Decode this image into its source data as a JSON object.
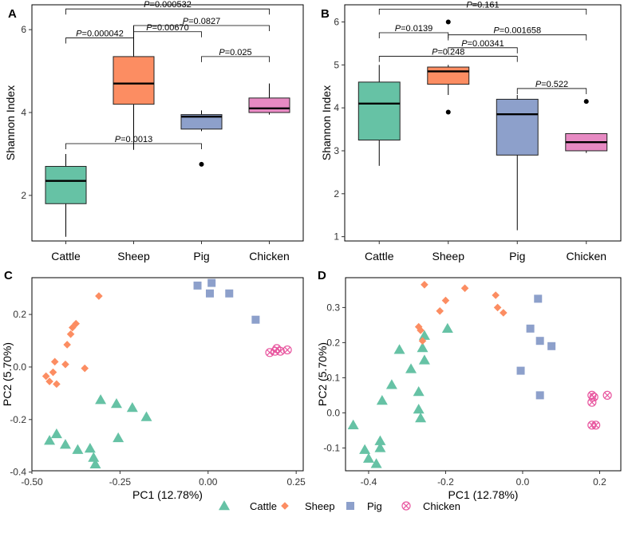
{
  "colors": {
    "Cattle": "#66c2a5",
    "Sheep": "#fc8d62",
    "Pig": "#8da0cb",
    "Chicken": "#e78ac3",
    "Chicken_marker": "#e8569f"
  },
  "legend": [
    "Cattle",
    "Sheep",
    "Pig",
    "Chicken"
  ],
  "chart_data": [
    {
      "panel": "A",
      "type": "box",
      "ylabel": "Shannon Index",
      "xlabel": "",
      "categories": [
        "Cattle",
        "Sheep",
        "Pig",
        "Chicken"
      ],
      "ylim": [
        0.9,
        6.6
      ],
      "yticks": [
        2,
        4,
        6
      ],
      "boxes": [
        {
          "group": "Cattle",
          "min": 1.0,
          "q1": 1.8,
          "median": 2.35,
          "q3": 2.7,
          "max": 3.0,
          "outliers": []
        },
        {
          "group": "Sheep",
          "min": 3.1,
          "q1": 4.2,
          "median": 4.7,
          "q3": 5.35,
          "max": 6.1,
          "outliers": []
        },
        {
          "group": "Pig",
          "min": 3.55,
          "q1": 3.6,
          "median": 3.9,
          "q3": 3.95,
          "max": 4.05,
          "outliers": [
            2.75
          ]
        },
        {
          "group": "Chicken",
          "min": 3.95,
          "q1": 4.0,
          "median": 4.1,
          "q3": 4.35,
          "max": 4.7,
          "outliers": []
        }
      ],
      "comparisons": [
        {
          "from": "Cattle",
          "to": "Chicken",
          "y": 6.5,
          "label_prefix": "P",
          "label": "=0.000532"
        },
        {
          "from": "Sheep",
          "to": "Chicken",
          "y": 6.1,
          "label_prefix": "P",
          "label": "=0.0827"
        },
        {
          "from": "Cattle",
          "to": "Sheep",
          "y": 5.8,
          "label_prefix": "P",
          "label": "=0.000042"
        },
        {
          "from": "Sheep",
          "to": "Pig",
          "y": 5.95,
          "label_prefix": "P",
          "label": "=0.00670"
        },
        {
          "from": "Pig",
          "to": "Chicken",
          "y": 5.35,
          "label_prefix": "P",
          "label": "=0.025"
        },
        {
          "from": "Cattle",
          "to": "Pig",
          "y": 3.25,
          "label_prefix": "P",
          "label": "=0.0013"
        }
      ]
    },
    {
      "panel": "B",
      "type": "box",
      "ylabel": "Shannon Index",
      "xlabel": "",
      "categories": [
        "Cattle",
        "Sheep",
        "Pig",
        "Chicken"
      ],
      "ylim": [
        0.9,
        6.4
      ],
      "yticks": [
        1,
        2,
        3,
        4,
        5,
        6
      ],
      "boxes": [
        {
          "group": "Cattle",
          "min": 2.65,
          "q1": 3.25,
          "median": 4.1,
          "q3": 4.6,
          "max": 5.0,
          "outliers": []
        },
        {
          "group": "Sheep",
          "min": 4.3,
          "q1": 4.55,
          "median": 4.85,
          "q3": 4.95,
          "max": 5.0,
          "outliers": [
            6.0,
            3.9
          ]
        },
        {
          "group": "Pig",
          "min": 1.15,
          "q1": 2.9,
          "median": 3.85,
          "q3": 4.2,
          "max": 4.3,
          "outliers": []
        },
        {
          "group": "Chicken",
          "min": 2.95,
          "q1": 3.0,
          "median": 3.2,
          "q3": 3.4,
          "max": 3.4,
          "outliers": [
            4.15
          ]
        }
      ],
      "comparisons": [
        {
          "from": "Cattle",
          "to": "Chicken",
          "y": 6.3,
          "label_prefix": "P",
          "label": "=0.161"
        },
        {
          "from": "Cattle",
          "to": "Sheep",
          "y": 5.75,
          "label_prefix": "P",
          "label": "=0.0139"
        },
        {
          "from": "Sheep",
          "to": "Chicken",
          "y": 5.7,
          "label_prefix": "P",
          "label": "=0.001658"
        },
        {
          "from": "Sheep",
          "to": "Pig",
          "y": 5.4,
          "label_prefix": "P",
          "label": "=0.00341"
        },
        {
          "from": "Cattle",
          "to": "Pig",
          "y": 5.2,
          "label_prefix": "P",
          "label": "=0.248"
        },
        {
          "from": "Pig",
          "to": "Chicken",
          "y": 4.45,
          "label_prefix": "P",
          "label": "=0.522"
        }
      ]
    },
    {
      "panel": "C",
      "type": "scatter",
      "xlabel": "PC1 (12.78%)",
      "ylabel": "PC2 (5.70%)",
      "xlim": [
        -0.5,
        0.27
      ],
      "ylim": [
        -0.395,
        0.34
      ],
      "xticks": [
        -0.5,
        -0.25,
        0.0,
        0.25
      ],
      "xtick_labels": [
        "-0.50",
        "-0.25",
        "0.00",
        "0.25"
      ],
      "yticks": [
        -0.4,
        -0.2,
        0.0,
        0.2
      ],
      "ytick_labels": [
        "-0.4",
        "-0.2",
        "0.0",
        "0.2"
      ],
      "series": [
        {
          "name": "Cattle",
          "marker": "triangle",
          "points": [
            [
              -0.45,
              -0.28
            ],
            [
              -0.43,
              -0.255
            ],
            [
              -0.405,
              -0.295
            ],
            [
              -0.37,
              -0.315
            ],
            [
              -0.335,
              -0.31
            ],
            [
              -0.325,
              -0.345
            ],
            [
              -0.32,
              -0.37
            ],
            [
              -0.305,
              -0.125
            ],
            [
              -0.26,
              -0.14
            ],
            [
              -0.215,
              -0.155
            ],
            [
              -0.175,
              -0.19
            ],
            [
              -0.255,
              -0.27
            ]
          ]
        },
        {
          "name": "Sheep",
          "marker": "diamond",
          "points": [
            [
              -0.46,
              -0.035
            ],
            [
              -0.45,
              -0.055
            ],
            [
              -0.44,
              -0.02
            ],
            [
              -0.435,
              0.02
            ],
            [
              -0.405,
              0.01
            ],
            [
              -0.4,
              0.085
            ],
            [
              -0.39,
              0.125
            ],
            [
              -0.385,
              0.15
            ],
            [
              -0.375,
              0.165
            ],
            [
              -0.35,
              -0.005
            ],
            [
              -0.31,
              0.27
            ],
            [
              -0.43,
              -0.065
            ]
          ]
        },
        {
          "name": "Pig",
          "marker": "square",
          "points": [
            [
              -0.03,
              0.31
            ],
            [
              0.005,
              0.28
            ],
            [
              0.01,
              0.32
            ],
            [
              0.06,
              0.28
            ],
            [
              0.135,
              0.18
            ]
          ]
        },
        {
          "name": "Chicken",
          "marker": "xcircle",
          "points": [
            [
              0.175,
              0.055
            ],
            [
              0.19,
              0.06
            ],
            [
              0.195,
              0.07
            ],
            [
              0.205,
              0.06
            ],
            [
              0.225,
              0.065
            ]
          ]
        }
      ]
    },
    {
      "panel": "D",
      "type": "scatter",
      "xlabel": "PC1 (12.78%)",
      "ylabel": "PC2 (5.70%)",
      "xlim": [
        -0.46,
        0.255
      ],
      "ylim": [
        -0.165,
        0.385
      ],
      "xticks": [
        -0.4,
        -0.2,
        0.0,
        0.2
      ],
      "xtick_labels": [
        "-0.4",
        "-0.2",
        "0.0",
        "0.2"
      ],
      "yticks": [
        -0.1,
        0.0,
        0.1,
        0.2,
        0.3
      ],
      "ytick_labels": [
        "-0.1",
        "0.0",
        "0.1",
        "0.2",
        "0.3"
      ],
      "series": [
        {
          "name": "Cattle",
          "marker": "triangle",
          "points": [
            [
              -0.44,
              -0.035
            ],
            [
              -0.41,
              -0.105
            ],
            [
              -0.4,
              -0.13
            ],
            [
              -0.38,
              -0.145
            ],
            [
              -0.37,
              -0.08
            ],
            [
              -0.37,
              -0.1
            ],
            [
              -0.365,
              0.035
            ],
            [
              -0.34,
              0.08
            ],
            [
              -0.32,
              0.18
            ],
            [
              -0.29,
              0.125
            ],
            [
              -0.27,
              0.06
            ],
            [
              -0.27,
              0.01
            ],
            [
              -0.265,
              -0.015
            ],
            [
              -0.26,
              0.185
            ],
            [
              -0.255,
              0.15
            ],
            [
              -0.255,
              0.22
            ],
            [
              -0.195,
              0.24
            ]
          ]
        },
        {
          "name": "Sheep",
          "marker": "diamond",
          "points": [
            [
              -0.27,
              0.245
            ],
            [
              -0.265,
              0.235
            ],
            [
              -0.26,
              0.205
            ],
            [
              -0.255,
              0.365
            ],
            [
              -0.215,
              0.29
            ],
            [
              -0.2,
              0.32
            ],
            [
              -0.15,
              0.355
            ],
            [
              -0.07,
              0.335
            ],
            [
              -0.065,
              0.3
            ],
            [
              -0.05,
              0.285
            ]
          ]
        },
        {
          "name": "Pig",
          "marker": "square",
          "points": [
            [
              -0.005,
              0.12
            ],
            [
              0.02,
              0.24
            ],
            [
              0.04,
              0.325
            ],
            [
              0.045,
              0.205
            ],
            [
              0.045,
              0.05
            ],
            [
              0.075,
              0.19
            ]
          ]
        },
        {
          "name": "Chicken",
          "marker": "xcircle",
          "points": [
            [
              0.18,
              0.05
            ],
            [
              0.18,
              0.03
            ],
            [
              0.185,
              0.045
            ],
            [
              0.18,
              -0.035
            ],
            [
              0.19,
              -0.035
            ],
            [
              0.22,
              0.05
            ]
          ]
        }
      ]
    }
  ]
}
